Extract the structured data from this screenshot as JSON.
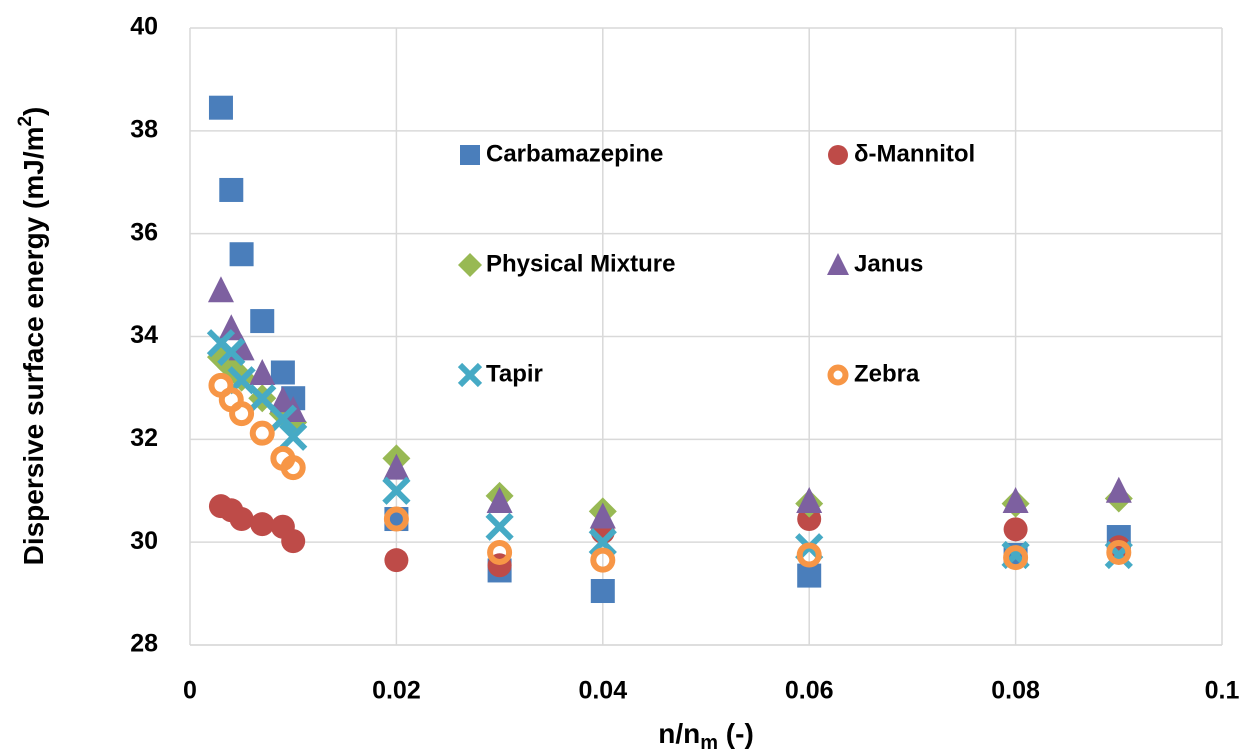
{
  "chart_data": {
    "type": "scatter",
    "x_label": [
      "n/n",
      "m",
      " (-)"
    ],
    "y_label": [
      "Dispersive surface energy (mJ/m",
      "2",
      ")"
    ],
    "x": [
      0.003,
      0.004,
      0.005,
      0.007,
      0.009,
      0.01,
      0.02,
      0.03,
      0.04,
      0.06,
      0.08,
      0.09
    ],
    "series": [
      {
        "name": "Carbamazepine",
        "color": "#4a7ebb",
        "marker": "square",
        "values": [
          38.45,
          36.85,
          35.6,
          34.3,
          33.3,
          32.8,
          30.45,
          29.45,
          29.05,
          29.35,
          29.75,
          30.1
        ]
      },
      {
        "name": "δ-Mannitol",
        "color": "#be4b48",
        "marker": "circle",
        "values": [
          30.7,
          30.62,
          30.45,
          30.35,
          30.3,
          30.02,
          29.65,
          29.55,
          30.2,
          30.45,
          30.25,
          29.9
        ]
      },
      {
        "name": "Physical Mixture",
        "color": "#98b954",
        "marker": "diamond",
        "values": [
          33.6,
          33.4,
          33.2,
          32.8,
          32.5,
          32.33,
          31.63,
          30.9,
          30.6,
          30.75,
          30.75,
          30.85
        ]
      },
      {
        "name": "Janus",
        "color": "#7d60a0",
        "marker": "triangle",
        "values": [
          34.9,
          34.16,
          33.77,
          33.29,
          32.76,
          32.57,
          31.45,
          30.8,
          30.5,
          30.8,
          30.8,
          31.0
        ]
      },
      {
        "name": "Tapir",
        "color": "#46aac5",
        "marker": "x",
        "values": [
          33.87,
          33.7,
          33.15,
          32.8,
          32.4,
          32.05,
          31.0,
          30.3,
          30.0,
          29.9,
          29.75,
          29.75
        ]
      },
      {
        "name": "Zebra",
        "color": "#f79646",
        "marker": "ring",
        "values": [
          33.05,
          32.77,
          32.5,
          32.12,
          31.63,
          31.45,
          30.45,
          29.8,
          29.65,
          29.75,
          29.7,
          29.8
        ]
      }
    ],
    "xlim": [
      0,
      0.1
    ],
    "xticks": [
      0,
      0.02,
      0.04,
      0.06,
      0.08,
      0.1
    ],
    "ylim": [
      28,
      40
    ],
    "yticks": [
      28,
      30,
      32,
      34,
      36,
      38,
      40
    ],
    "grid": true
  }
}
